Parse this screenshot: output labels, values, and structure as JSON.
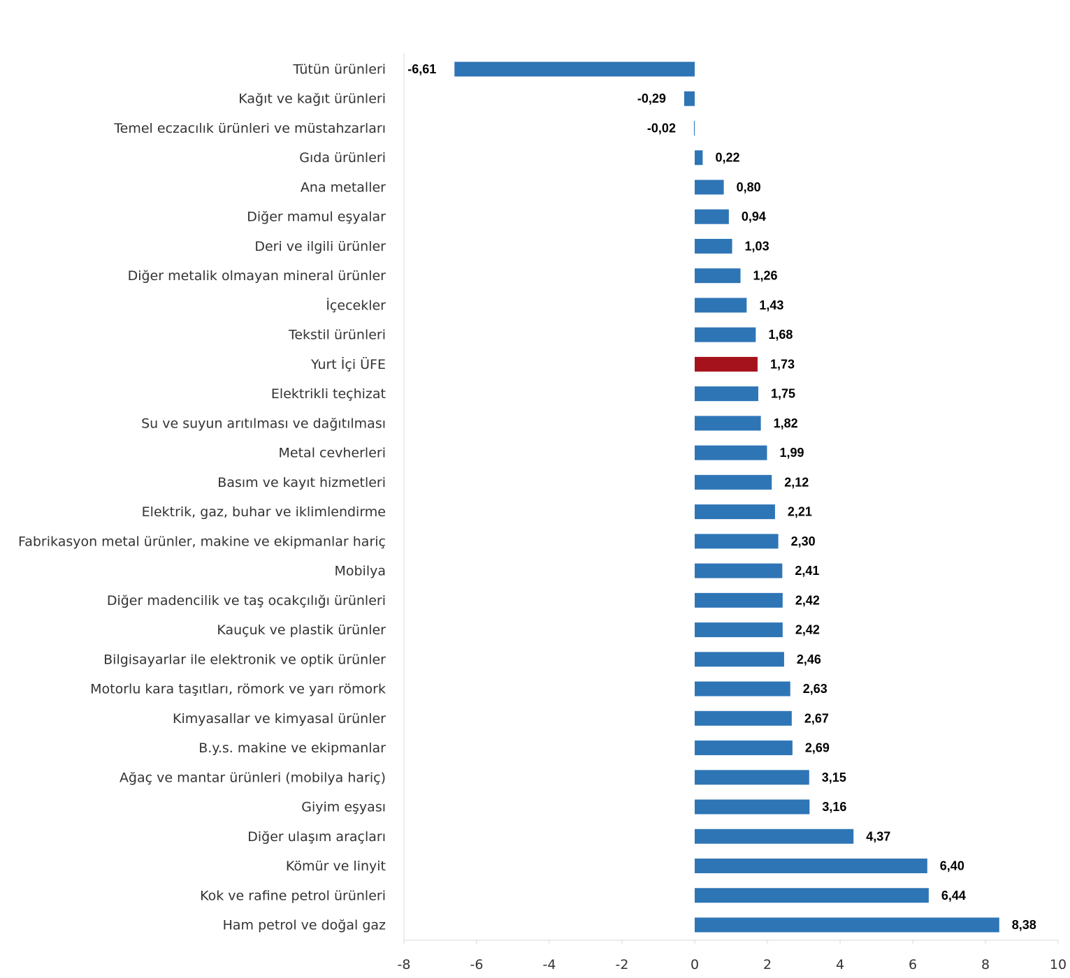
{
  "chart_data": {
    "type": "bar",
    "orientation": "horizontal",
    "categories": [
      "Tütün ürünleri",
      "Kağıt ve kağıt ürünleri",
      "Temel eczacılık ürünleri ve müstahzarları",
      "Gıda ürünleri",
      "Ana metaller",
      "Diğer mamul eşyalar",
      "Deri ve ilgili ürünler",
      "Diğer metalik olmayan mineral ürünler",
      "İçecekler",
      "Tekstil ürünleri",
      "Yurt İçi ÜFE",
      "Elektrikli teçhizat",
      "Su ve suyun arıtılması ve dağıtılması",
      "Metal cevherleri",
      "Basım ve kayıt hizmetleri",
      "Elektrik, gaz, buhar ve iklimlendirme",
      "Fabrikasyon metal ürünler, makine ve ekipmanlar hariç",
      "Mobilya",
      "Diğer madencilik ve taş ocakçılığı ürünleri",
      "Kauçuk ve plastik ürünler",
      "Bilgisayarlar ile elektronik ve optik ürünler",
      "Motorlu kara taşıtları, römork ve yarı römork",
      "Kimyasallar ve kimyasal ürünler",
      "B.y.s. makine ve ekipmanlar",
      "Ağaç ve mantar ürünleri (mobilya hariç)",
      "Giyim eşyası",
      "Diğer ulaşım araçları",
      "Kömür ve linyit",
      "Kok ve rafine petrol ürünleri",
      "Ham petrol ve doğal gaz"
    ],
    "values": [
      -6.61,
      -0.29,
      -0.02,
      0.22,
      0.8,
      0.94,
      1.03,
      1.26,
      1.43,
      1.68,
      1.73,
      1.75,
      1.82,
      1.99,
      2.12,
      2.21,
      2.3,
      2.41,
      2.42,
      2.42,
      2.46,
      2.63,
      2.67,
      2.69,
      3.15,
      3.16,
      4.37,
      6.4,
      6.44,
      8.38
    ],
    "value_labels": [
      "-6,61",
      "-0,29",
      "-0,02",
      "0,22",
      "0,80",
      "0,94",
      "1,03",
      "1,26",
      "1,43",
      "1,68",
      "1,73",
      "1,75",
      "1,82",
      "1,99",
      "2,12",
      "2,21",
      "2,30",
      "2,41",
      "2,42",
      "2,42",
      "2,46",
      "2,63",
      "2,67",
      "2,69",
      "3,15",
      "3,16",
      "4,37",
      "6,40",
      "6,44",
      "8,38"
    ],
    "highlight_category": "Yurt İçi ÜFE",
    "xlim": [
      -8,
      10
    ],
    "x_ticks": [
      -8,
      -6,
      -4,
      -2,
      0,
      2,
      4,
      6,
      8,
      10
    ],
    "x_tick_labels": [
      "-8",
      "-6",
      "-4",
      "-2",
      "0",
      "2",
      "4",
      "6",
      "8",
      "10"
    ],
    "grid": false,
    "colors": {
      "bar": "#2e75b6",
      "highlight": "#a5121b",
      "axis": "#d9d9d9"
    }
  }
}
